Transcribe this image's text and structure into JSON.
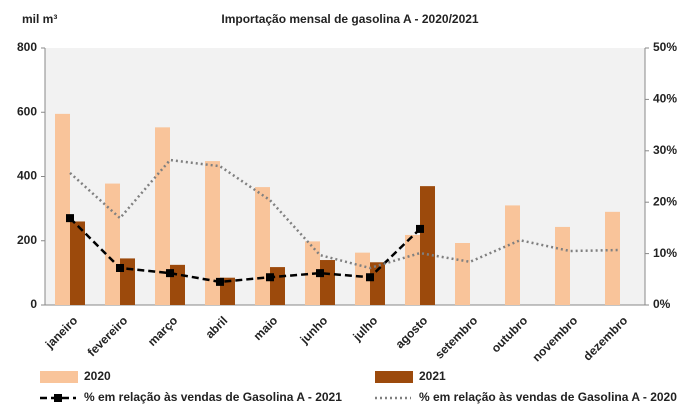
{
  "chart_data": {
    "type": "bar",
    "title": "Importação mensal de gasolina A - 2020/2021",
    "ylabel": "mil m³",
    "categories": [
      "janeiro",
      "fevereiro",
      "março",
      "abril",
      "maio",
      "junho",
      "julho",
      "agosto",
      "setembro",
      "outubro",
      "novembro",
      "dezembro"
    ],
    "ylim": [
      0,
      800
    ],
    "yticks": [
      0,
      200,
      400,
      600,
      800
    ],
    "y2lim": [
      0,
      50
    ],
    "y2ticks": [
      {
        "value": 0,
        "label": "0%"
      },
      {
        "value": 10,
        "label": "10%"
      },
      {
        "value": 20,
        "label": "20%"
      },
      {
        "value": 30,
        "label": "30%"
      },
      {
        "value": 40,
        "label": "40%"
      },
      {
        "value": 50,
        "label": "50%"
      }
    ],
    "series": [
      {
        "name": "2020",
        "type": "bar",
        "color": "#f9c49a",
        "values": [
          595,
          378,
          553,
          448,
          367,
          198,
          163,
          218,
          193,
          310,
          243,
          290
        ]
      },
      {
        "name": "2021",
        "type": "bar",
        "color": "#9c4a0c",
        "values": [
          260,
          145,
          125,
          85,
          118,
          140,
          133,
          370,
          null,
          null,
          null,
          null
        ]
      },
      {
        "name": "% em relação às vendas de Gasolina A - 2021",
        "type": "line",
        "axis": "y2",
        "color": "#000000",
        "style": "dashed-marker",
        "values": [
          16.9,
          7.2,
          6.2,
          4.5,
          5.4,
          6.2,
          5.4,
          14.8,
          null,
          null,
          null,
          null
        ]
      },
      {
        "name": "% em relação às vendas de Gasolina A - 2020",
        "type": "line",
        "axis": "y2",
        "color": "#808080",
        "style": "dotted",
        "values": [
          25.7,
          16.9,
          28.2,
          27,
          20.4,
          9.7,
          7.2,
          10.1,
          8.4,
          12.6,
          10.5,
          10.7
        ]
      }
    ]
  }
}
